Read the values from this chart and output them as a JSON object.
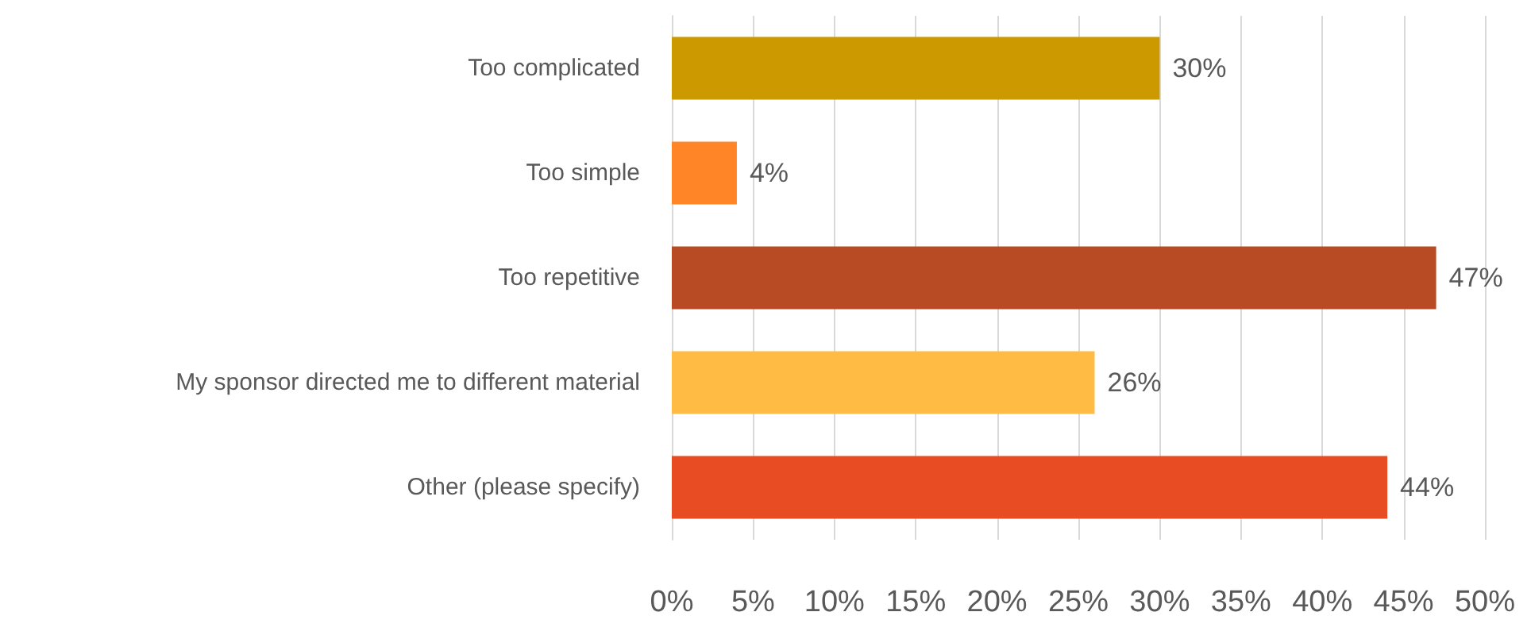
{
  "chart_data": {
    "type": "bar",
    "orientation": "horizontal",
    "categories": [
      "Too complicated",
      "Too simple",
      "Too repetitive",
      "My sponsor directed me to different material",
      "Other (please specify)"
    ],
    "values": [
      30,
      4,
      47,
      26,
      44
    ],
    "colors": [
      "#cc9900",
      "#ff8527",
      "#b84a24",
      "#ffbb44",
      "#e84c22"
    ],
    "value_labels": [
      "30%",
      "4%",
      "47%",
      "26%",
      "44%"
    ],
    "xlim": [
      0,
      50
    ],
    "xticks": [
      {
        "value": 0,
        "label": "0%"
      },
      {
        "value": 5,
        "label": "5%"
      },
      {
        "value": 10,
        "label": "10%"
      },
      {
        "value": 15,
        "label": "15%"
      },
      {
        "value": 20,
        "label": "20%"
      },
      {
        "value": 25,
        "label": "25%"
      },
      {
        "value": 30,
        "label": "30%"
      },
      {
        "value": 35,
        "label": "35%"
      },
      {
        "value": 40,
        "label": "40%"
      },
      {
        "value": 45,
        "label": "45%"
      },
      {
        "value": 50,
        "label": "50%"
      }
    ],
    "grid": "x"
  }
}
